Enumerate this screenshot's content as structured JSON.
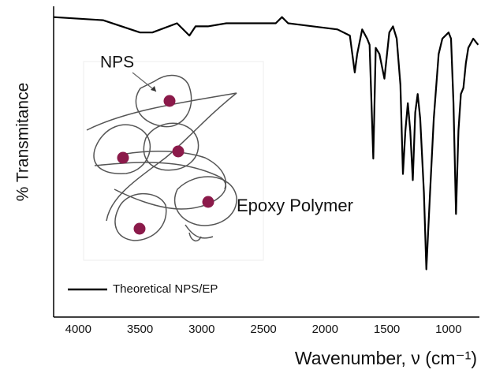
{
  "chart_data": {
    "type": "line",
    "x_label": "Wavenumber, ν (cm⁻¹)",
    "y_label": "% Transmitance",
    "inset_labels": [
      "NPS",
      "Epoxy Polymer"
    ],
    "x": [
      4200,
      3800,
      3500,
      3400,
      3200,
      3100,
      3050,
      2950,
      2800,
      2400,
      2350,
      2300,
      1900,
      1800,
      1760,
      1740,
      1700,
      1660,
      1640,
      1610,
      1590,
      1560,
      1520,
      1480,
      1450,
      1420,
      1390,
      1370,
      1350,
      1330,
      1310,
      1290,
      1270,
      1250,
      1230,
      1200,
      1180,
      1150,
      1120,
      1080,
      1050,
      1000,
      980,
      960,
      940,
      920,
      900,
      880,
      860,
      840,
      800,
      760
    ],
    "series": [
      {
        "name": "Theoretical NPS/EP",
        "color": "#000000",
        "values": [
          97,
          96,
          92,
          92,
          95,
          91,
          94,
          94,
          95,
          95,
          97,
          95,
          93,
          91,
          79,
          85,
          93,
          90,
          88,
          51,
          87,
          85,
          77,
          92,
          94,
          90,
          75,
          46,
          60,
          69,
          60,
          44,
          66,
          72,
          64,
          40,
          15,
          40,
          64,
          85,
          90,
          92,
          90,
          69,
          33,
          60,
          72,
          74,
          82,
          87,
          90,
          88
        ]
      }
    ],
    "xlim": [
      4200,
      750
    ],
    "xticks": [
      4000,
      3500,
      3000,
      2500,
      2000,
      1500,
      1000
    ],
    "ylim": [
      0,
      100
    ],
    "legend": "lower-left"
  }
}
